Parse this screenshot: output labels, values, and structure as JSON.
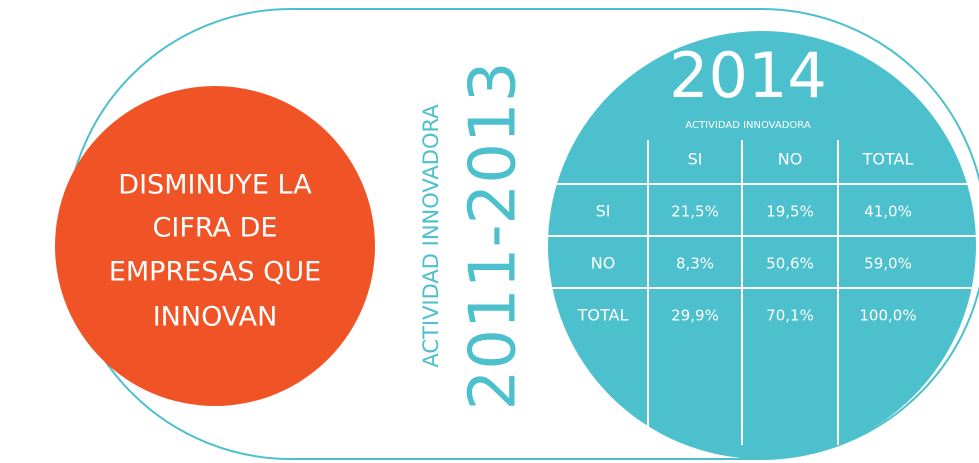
{
  "left": {
    "headline": [
      "DISMINUYE LA",
      "CIFRA DE",
      "EMPRESAS QUE",
      "INNOVAN"
    ]
  },
  "middle": {
    "subtitle": "ACTIVIDAD INNOVADORA",
    "period": "2011-2013"
  },
  "right": {
    "year": "2014",
    "subtitle": "ACTIVIDAD INNOVADORA",
    "table": {
      "columns": [
        "SI",
        "NO",
        "TOTAL"
      ],
      "rows": [
        {
          "label": "SI",
          "cells": [
            "21,5%",
            "19,5%",
            "41,0%"
          ]
        },
        {
          "label": "NO",
          "cells": [
            "8,3%",
            "50,6%",
            "59,0%"
          ]
        },
        {
          "label": "TOTAL",
          "cells": [
            "29,9%",
            "70,1%",
            "100,0%"
          ]
        }
      ]
    }
  }
}
